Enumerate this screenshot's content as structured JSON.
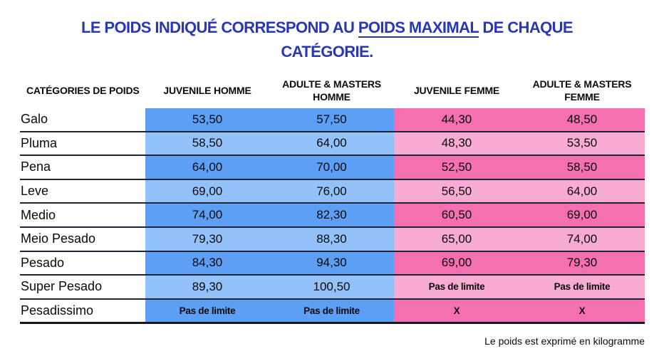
{
  "title": {
    "text_before_underline": "LE POIDS INDIQUÉ CORRESPOND AU ",
    "underlined_text": "POIDS MAXIMAL",
    "text_after_underline": " DE CHAQUE",
    "second_line": "CATÉGORIE."
  },
  "table": {
    "headers": {
      "category": "CATÉGORIES DE POIDS",
      "juvenile_homme": "JUVENILE HOMME",
      "adulte_masters_homme": "ADULTE & MASTERS HOMME",
      "juvenile_femme": "JUVENILE FEMME",
      "adulte_masters_femme": "ADULTE & MASTERS FEMME"
    },
    "rows": [
      {
        "category": "Galo",
        "juvenile_homme": "53,50",
        "adulte_masters_homme": "57,50",
        "juvenile_femme": "44,30",
        "adulte_masters_femme": "48,50"
      },
      {
        "category": "Pluma",
        "juvenile_homme": "58,50",
        "adulte_masters_homme": "64,00",
        "juvenile_femme": "48,30",
        "adulte_masters_femme": "53,50"
      },
      {
        "category": "Pena",
        "juvenile_homme": "64,00",
        "adulte_masters_homme": "70,00",
        "juvenile_femme": "52,50",
        "adulte_masters_femme": "58,50"
      },
      {
        "category": "Leve",
        "juvenile_homme": "69,00",
        "adulte_masters_homme": "76,00",
        "juvenile_femme": "56,50",
        "adulte_masters_femme": "64,00"
      },
      {
        "category": "Medio",
        "juvenile_homme": "74,00",
        "adulte_masters_homme": "82,30",
        "juvenile_femme": "60,50",
        "adulte_masters_femme": "69,00"
      },
      {
        "category": "Meio Pesado",
        "juvenile_homme": "79,30",
        "adulte_masters_homme": "88,30",
        "juvenile_femme": "65,00",
        "adulte_masters_femme": "74,00"
      },
      {
        "category": "Pesado",
        "juvenile_homme": "84,30",
        "adulte_masters_homme": "94,30",
        "juvenile_femme": "69,00",
        "adulte_masters_femme": "79,30"
      },
      {
        "category": "Super Pesado",
        "juvenile_homme": "89,30",
        "adulte_masters_homme": "100,50",
        "juvenile_femme": "Pas de limite",
        "adulte_masters_femme": "Pas de limite"
      },
      {
        "category": "Pesadissimo",
        "juvenile_homme": "Pas de limite",
        "adulte_masters_homme": "Pas de limite",
        "juvenile_femme": "X",
        "adulte_masters_femme": "X"
      }
    ]
  },
  "footer": {
    "note": "Le poids est exprimé en kilogramme"
  },
  "colors": {
    "title_blue": "#2837b4",
    "men_dark": "#5c9ff5",
    "men_light": "#92c2f9",
    "women_dark": "#f470b1",
    "women_light": "#f8abd3"
  }
}
